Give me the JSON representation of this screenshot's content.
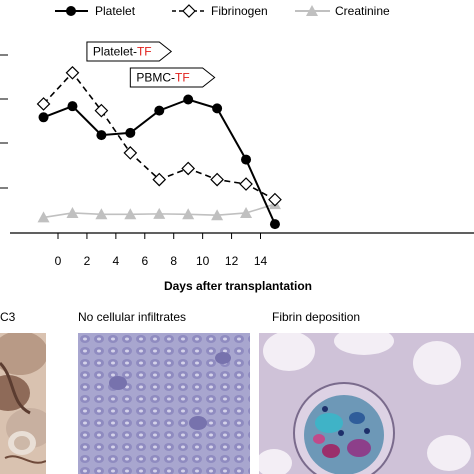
{
  "chart_data": {
    "type": "line",
    "xlabel": "Days after transplantation",
    "ylabel": "",
    "xlim": [
      -1.7,
      15
    ],
    "ylim": [
      0,
      5
    ],
    "x_ticks": [
      0,
      2,
      4,
      6,
      8,
      10,
      12,
      14
    ],
    "x_tick_labels": [
      "0",
      "2",
      "4",
      "6",
      "8",
      "10",
      "12",
      "14"
    ],
    "grid": false,
    "legend_position": "top",
    "series": [
      {
        "name": "Platelet",
        "marker": "filled-circle",
        "line": "solid",
        "color": "#000000",
        "x": [
          -1,
          1,
          3,
          5,
          7,
          9,
          11,
          13,
          15
        ],
        "y": [
          2.6,
          2.85,
          2.2,
          2.25,
          2.75,
          3.0,
          2.8,
          1.65,
          0.2
        ]
      },
      {
        "name": "Fibrinogen",
        "marker": "open-diamond",
        "line": "dashed",
        "color": "#000000",
        "x": [
          -1,
          1,
          3,
          5,
          7,
          9,
          11,
          13,
          15
        ],
        "y": [
          2.9,
          3.6,
          2.75,
          1.8,
          1.2,
          1.45,
          1.2,
          1.1,
          0.75
        ]
      },
      {
        "name": "Creatinine",
        "marker": "filled-triangle",
        "line": "solid",
        "color": "#c0c0c0",
        "x": [
          -1,
          1,
          3,
          5,
          7,
          9,
          11,
          13,
          15
        ],
        "y": [
          0.35,
          0.45,
          0.42,
          0.42,
          0.43,
          0.42,
          0.4,
          0.45,
          0.65
        ]
      }
    ],
    "annotations": [
      {
        "prefix": "Platelet-",
        "highlight": "TF",
        "x_start": 2,
        "x_end": 7
      },
      {
        "prefix": "PBMC-",
        "highlight": "TF",
        "x_start": 5,
        "x_end": 10
      }
    ],
    "highlight_color": "#e0201b"
  },
  "panels": {
    "left_label": "C3",
    "middle_label": "No cellular infiltrates",
    "right_label": "Fibrin deposition"
  }
}
